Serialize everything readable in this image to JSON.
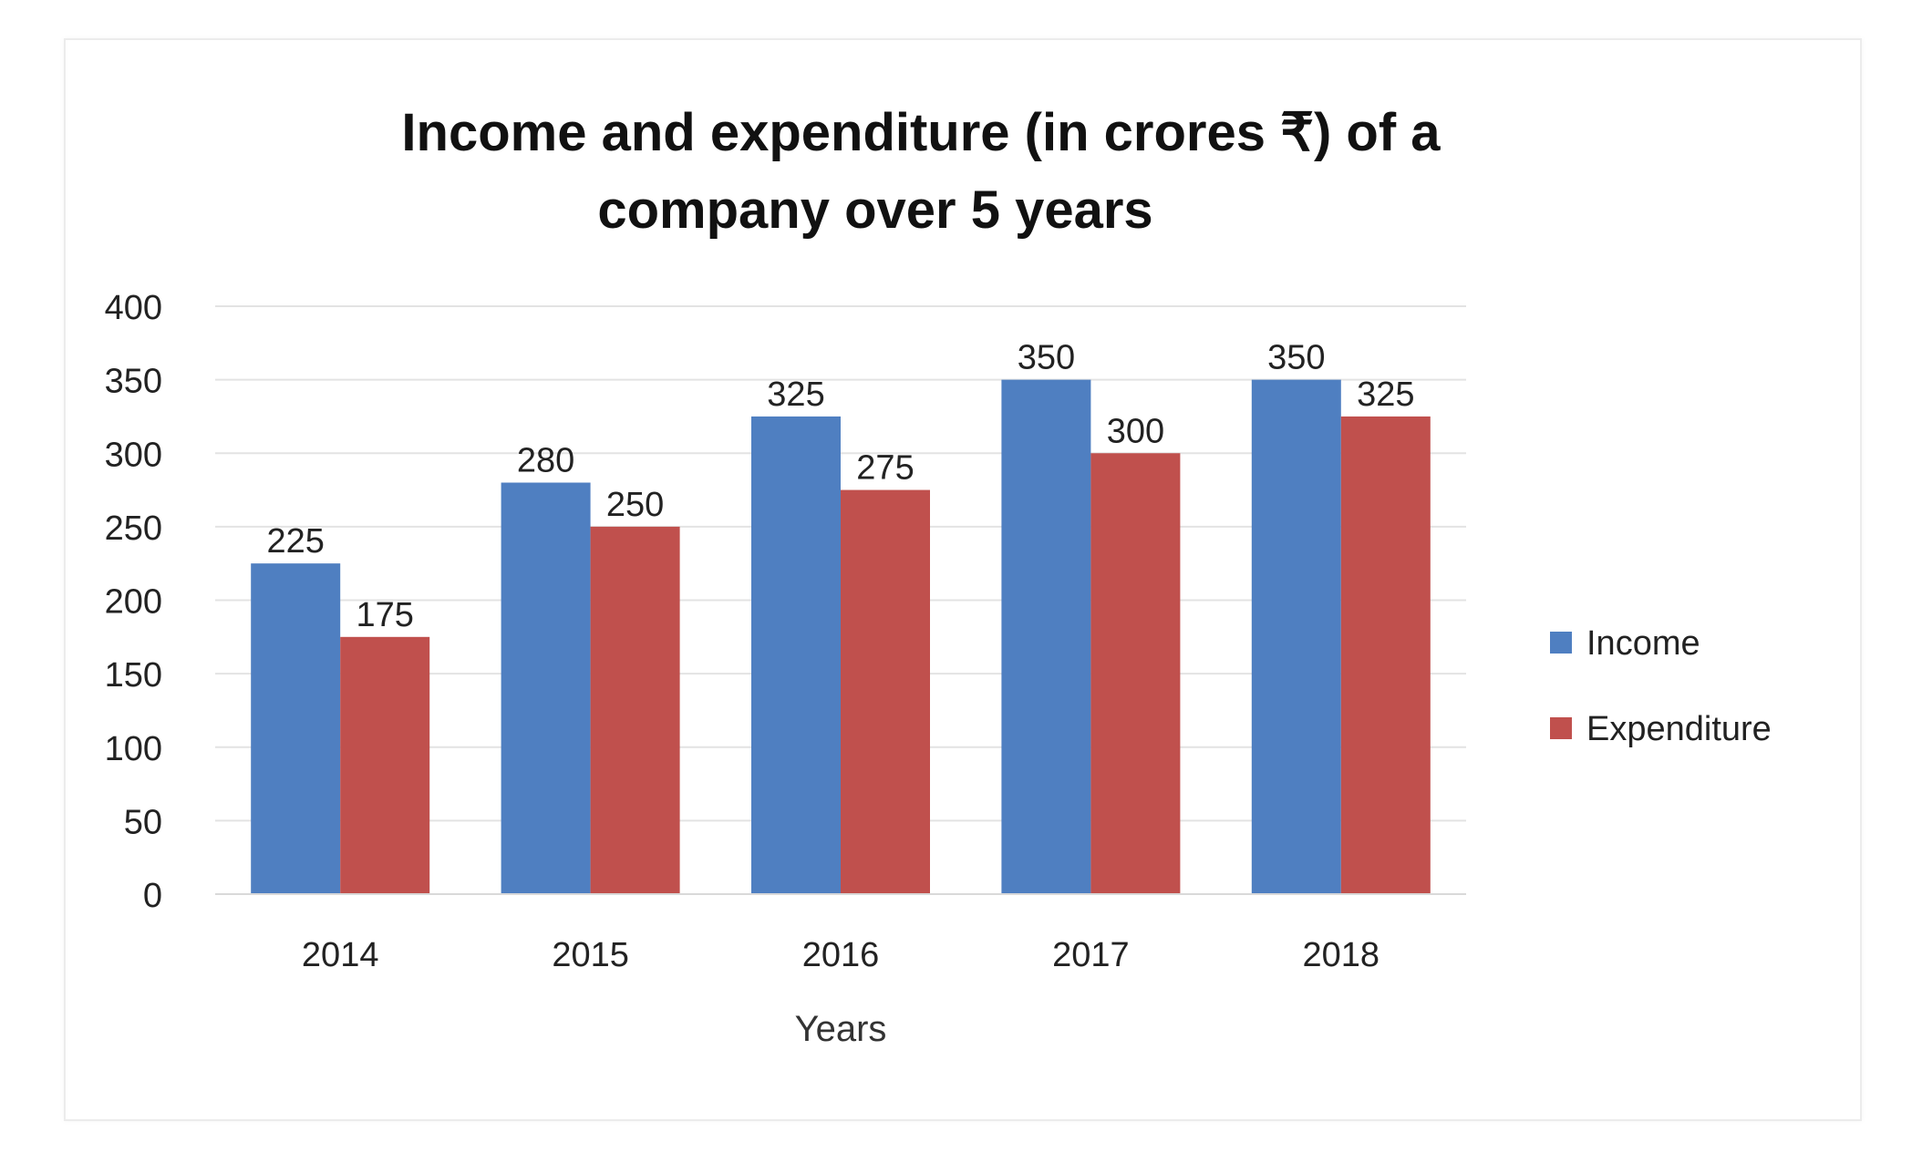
{
  "chart_data": {
    "type": "bar",
    "title_lines": [
      "Income and expenditure (in crores ₹) of a",
      "company over 5 years"
    ],
    "xlabel": "Years",
    "ylabel": "",
    "categories": [
      "2014",
      "2015",
      "2016",
      "2017",
      "2018"
    ],
    "series": [
      {
        "name": "Income",
        "color": "#4f7fc1",
        "values": [
          225,
          280,
          325,
          350,
          350
        ]
      },
      {
        "name": "Expenditure",
        "color": "#c0504d",
        "values": [
          175,
          250,
          275,
          300,
          325
        ]
      }
    ],
    "ylim": [
      0,
      400
    ],
    "yticks": [
      0,
      50,
      100,
      150,
      200,
      250,
      300,
      350,
      400
    ],
    "grid": true,
    "legend_position": "right",
    "data_labels": true
  }
}
